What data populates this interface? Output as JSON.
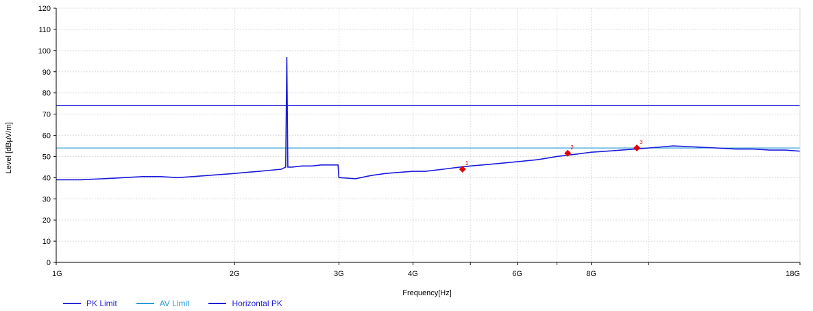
{
  "chart_data": {
    "type": "line",
    "title": "",
    "xlabel": "Frequency[Hz]",
    "ylabel": "Level [dBµV/m]",
    "x_scale": "log",
    "xlim": [
      1,
      18
    ],
    "ylim": [
      0,
      120
    ],
    "x_ticks": [
      {
        "value": 1,
        "label": "1G"
      },
      {
        "value": 2,
        "label": "2G"
      },
      {
        "value": 3,
        "label": "3G"
      },
      {
        "value": 4,
        "label": "4G"
      },
      {
        "value": 6,
        "label": "6G"
      },
      {
        "value": 8,
        "label": "8G"
      },
      {
        "value": 18,
        "label": "18G"
      }
    ],
    "x_minor_gridlines": [
      5,
      7,
      10
    ],
    "y_ticks": [
      0,
      10,
      20,
      30,
      40,
      50,
      60,
      70,
      80,
      90,
      100,
      110,
      120
    ],
    "grid": true,
    "legend_position": "bottom-left",
    "series": [
      {
        "name": "PK Limit",
        "color": "#2b2bd6",
        "type": "hline",
        "value": 74
      },
      {
        "name": "AV Limit",
        "color": "#2a9ad6",
        "type": "hline",
        "value": 54
      },
      {
        "name": "Horizontal PK",
        "color": "#1a1adb",
        "x": [
          1.0,
          1.1,
          1.2,
          1.3,
          1.4,
          1.5,
          1.6,
          1.7,
          1.8,
          1.9,
          2.0,
          2.1,
          2.2,
          2.3,
          2.4,
          2.44,
          2.45,
          2.46,
          2.5,
          2.6,
          2.7,
          2.8,
          2.9,
          2.99,
          3.0,
          3.01,
          3.2,
          3.4,
          3.6,
          3.8,
          4.0,
          4.2,
          4.5,
          4.8,
          5.0,
          5.5,
          6.0,
          6.5,
          7.0,
          7.5,
          8.0,
          8.5,
          9.0,
          9.5,
          10.0,
          10.5,
          11.0,
          12.0,
          13.0,
          14.0,
          15.0,
          16.0,
          17.0,
          18.0
        ],
        "y": [
          39,
          39,
          39.5,
          40,
          40.5,
          40.5,
          40,
          40.5,
          41,
          41.5,
          42,
          42.5,
          43,
          43.5,
          44,
          45,
          97,
          45,
          45,
          45.5,
          45.5,
          46,
          46,
          46,
          40,
          40,
          39.5,
          41,
          42,
          42.5,
          43,
          43,
          44,
          45,
          45.5,
          46.5,
          47.5,
          48.5,
          50,
          51,
          52,
          52.5,
          53,
          53.5,
          54,
          54.5,
          55,
          54.5,
          54,
          53.5,
          53.5,
          53,
          53,
          52.5
        ]
      },
      {
        "name": "markers",
        "color": "#e00000",
        "type": "points",
        "x": [
          4.85,
          7.3,
          9.55
        ],
        "y": [
          44,
          51.5,
          54
        ],
        "labels": [
          "1",
          "2",
          "3"
        ]
      }
    ]
  }
}
